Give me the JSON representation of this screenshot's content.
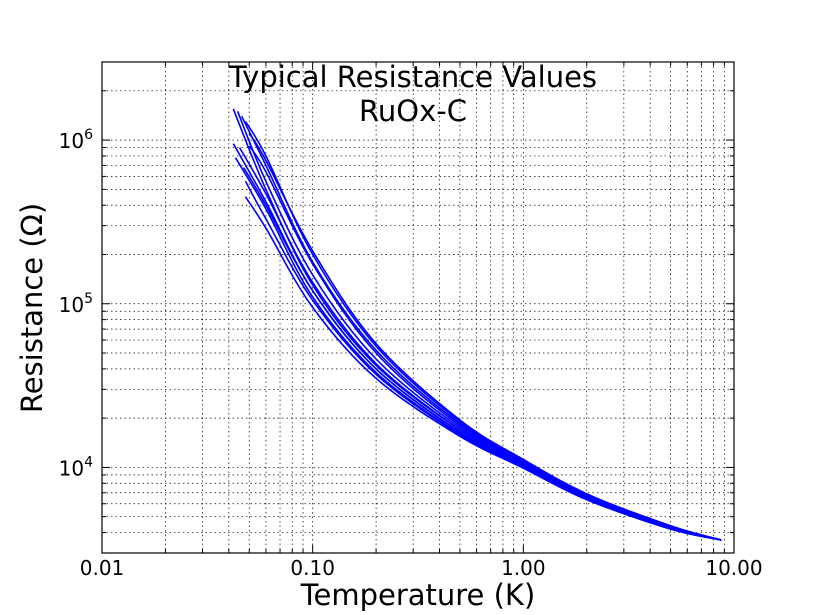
{
  "chart_data": {
    "type": "line",
    "title": "Typical Resistance Values",
    "subtitle": "RuOx-C",
    "xlabel": "Temperature (K)",
    "ylabel": "Resistance (Ω)",
    "xscale": "log",
    "yscale": "log",
    "xlim": [
      0.01,
      10.0
    ],
    "ylim": [
      3000,
      3000000
    ],
    "grid": true,
    "x_ticks": [
      {
        "value": 0.01,
        "label": "0.01"
      },
      {
        "value": 0.1,
        "label": "0.10"
      },
      {
        "value": 1.0,
        "label": "1.00"
      },
      {
        "value": 10.0,
        "label": "10.00"
      }
    ],
    "y_ticks": [
      {
        "value": 10000,
        "base": "10",
        "exp": "4"
      },
      {
        "value": 100000,
        "base": "10",
        "exp": "5"
      },
      {
        "value": 1000000,
        "base": "10",
        "exp": "6"
      }
    ],
    "series_color": "#0000ff",
    "series": [
      {
        "x": [
          0.042,
          0.06,
          0.1,
          0.2,
          0.5,
          1.0,
          2.0,
          5.0,
          8.7
        ],
        "y": [
          1550000,
          500000,
          130000,
          42000,
          17000,
          10500,
          6600,
          4300,
          3600
        ]
      },
      {
        "x": [
          0.044,
          0.06,
          0.1,
          0.2,
          0.5,
          1.0,
          2.0,
          5.0,
          8.7
        ],
        "y": [
          1500000,
          560000,
          150000,
          46000,
          17500,
          10600,
          6650,
          4320,
          3600
        ]
      },
      {
        "x": [
          0.046,
          0.06,
          0.1,
          0.2,
          0.5,
          1.0,
          2.0,
          5.0,
          8.7
        ],
        "y": [
          1400000,
          700000,
          180000,
          52000,
          18500,
          10900,
          6750,
          4350,
          3600
        ]
      },
      {
        "x": [
          0.048,
          0.06,
          0.1,
          0.2,
          0.5,
          1.0,
          2.0,
          5.0,
          8.7
        ],
        "y": [
          1300000,
          800000,
          200000,
          55000,
          19000,
          11000,
          6800,
          4380,
          3600
        ]
      },
      {
        "x": [
          0.05,
          0.06,
          0.1,
          0.2,
          0.5,
          1.0,
          2.0,
          5.0,
          8.7
        ],
        "y": [
          1100000,
          750000,
          210000,
          57000,
          19500,
          11200,
          6900,
          4400,
          3600
        ]
      },
      {
        "x": [
          0.042,
          0.06,
          0.1,
          0.2,
          0.5,
          1.0,
          2.0,
          5.0,
          8.7
        ],
        "y": [
          950000,
          420000,
          120000,
          40000,
          16500,
          10300,
          6550,
          4280,
          3600
        ]
      },
      {
        "x": [
          0.045,
          0.06,
          0.1,
          0.2,
          0.5,
          1.0,
          2.0,
          5.0,
          8.7
        ],
        "y": [
          900000,
          470000,
          135000,
          43000,
          17000,
          10400,
          6600,
          4300,
          3600
        ]
      },
      {
        "x": [
          0.043,
          0.06,
          0.1,
          0.2,
          0.5,
          1.0,
          2.0,
          5.0,
          8.7
        ],
        "y": [
          780000,
          380000,
          110000,
          38000,
          16000,
          10100,
          6450,
          4250,
          3600
        ]
      },
      {
        "x": [
          0.047,
          0.06,
          0.1,
          0.2,
          0.5,
          1.0,
          2.0,
          5.0,
          8.7
        ],
        "y": [
          680000,
          400000,
          120000,
          40000,
          16400,
          10250,
          6500,
          4260,
          3600
        ]
      },
      {
        "x": [
          0.048,
          0.06,
          0.1,
          0.2,
          0.5,
          1.0,
          2.0,
          5.0,
          8.7
        ],
        "y": [
          450000,
          290000,
          95000,
          35000,
          15500,
          9900,
          6350,
          4200,
          3600
        ]
      },
      {
        "x": [
          0.048,
          0.06,
          0.1,
          0.2,
          0.5,
          1.0,
          2.0,
          5.0,
          8.7
        ],
        "y": [
          560000,
          330000,
          105000,
          37000,
          15800,
          10000,
          6400,
          4220,
          3600
        ]
      },
      {
        "x": [
          0.05,
          0.06,
          0.1,
          0.2,
          0.5,
          1.0,
          2.0,
          5.0,
          8.7
        ],
        "y": [
          920000,
          640000,
          175000,
          50000,
          18000,
          10800,
          6700,
          4340,
          3600
        ]
      }
    ]
  }
}
